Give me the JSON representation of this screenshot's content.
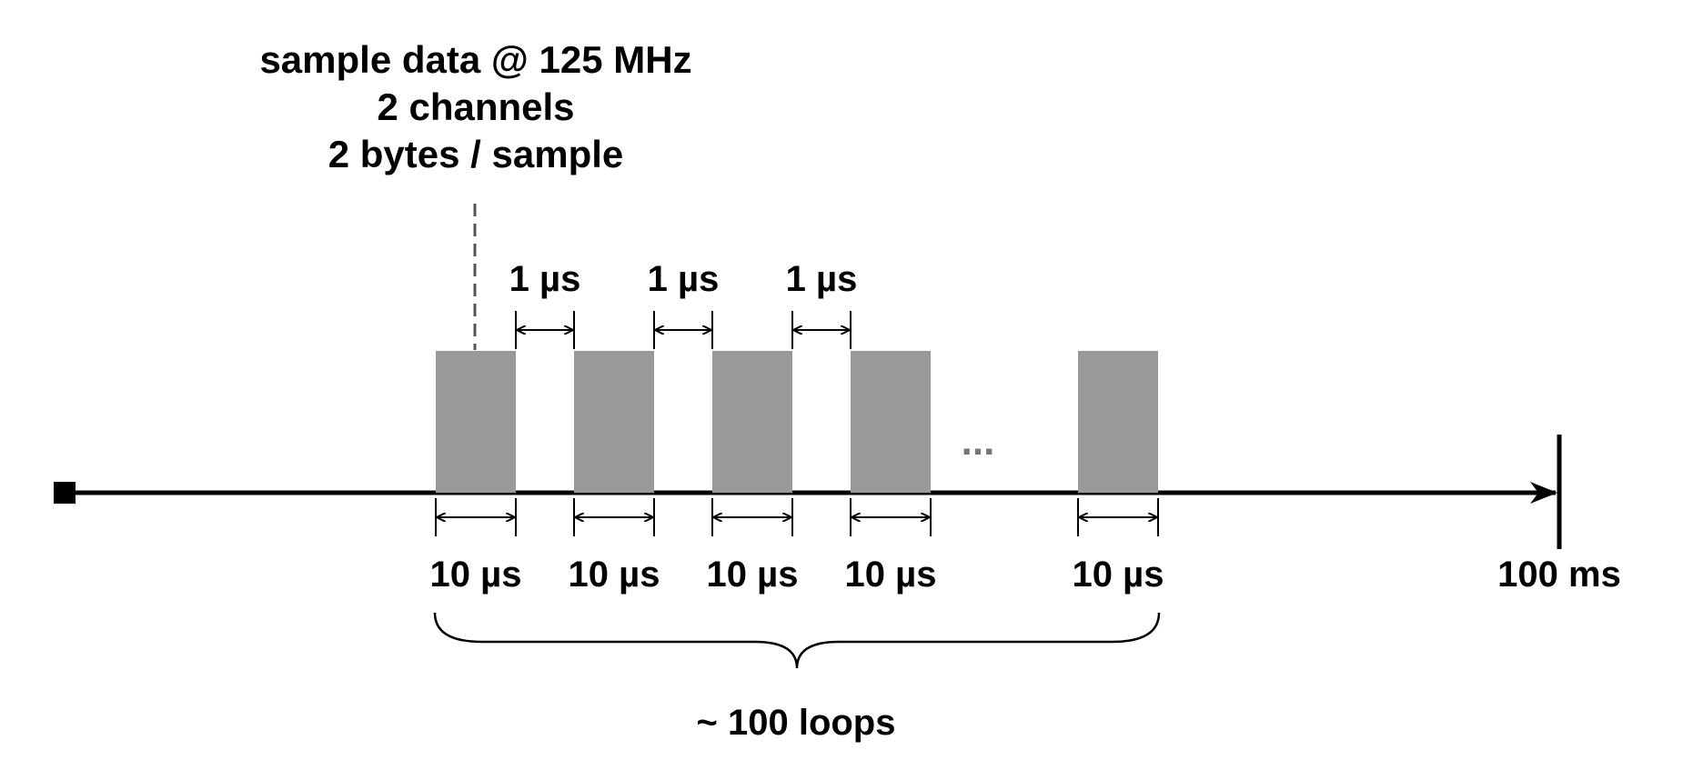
{
  "header": {
    "line1": "sample data @ 125 MHz",
    "line2": "2 channels",
    "line3": "2 bytes / sample"
  },
  "gap_labels": [
    "1 µs",
    "1 µs",
    "1 µs"
  ],
  "block_labels": [
    "10 µs",
    "10 µs",
    "10 µs",
    "10 µs",
    "10 µs"
  ],
  "ellipsis": "...",
  "end_label": "100 ms",
  "brace_label": "~ 100 loops",
  "colors": {
    "block": "#999999",
    "line": "#000000",
    "dashed": "#555555"
  }
}
